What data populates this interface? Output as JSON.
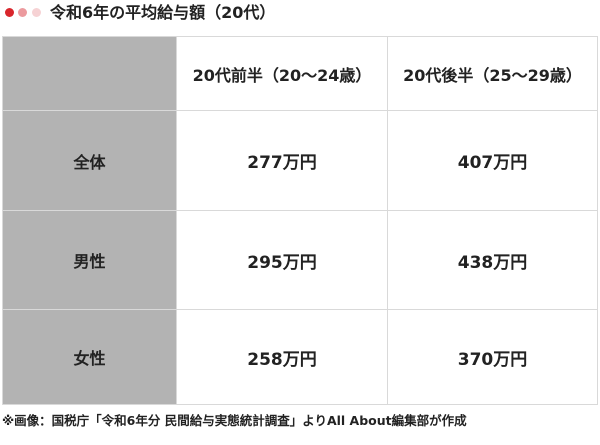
{
  "header": {
    "title": "令和6年の平均給与額（20代）",
    "accent_dots": [
      "#d9262c",
      "#ec9a9e",
      "#f6d2d4"
    ]
  },
  "table": {
    "corner": "",
    "columns": [
      "20代前半（20～24歳）",
      "20代後半（25～29歳）"
    ],
    "rows": [
      {
        "label": "全体",
        "values": [
          "277万円",
          "407万円"
        ]
      },
      {
        "label": "男性",
        "values": [
          "295万円",
          "438万円"
        ]
      },
      {
        "label": "女性",
        "values": [
          "258万円",
          "370万円"
        ]
      }
    ]
  },
  "footer": {
    "source": "※画像：国税庁「令和6年分 民間給与実態統計調査」よりAll About編集部が作成"
  }
}
